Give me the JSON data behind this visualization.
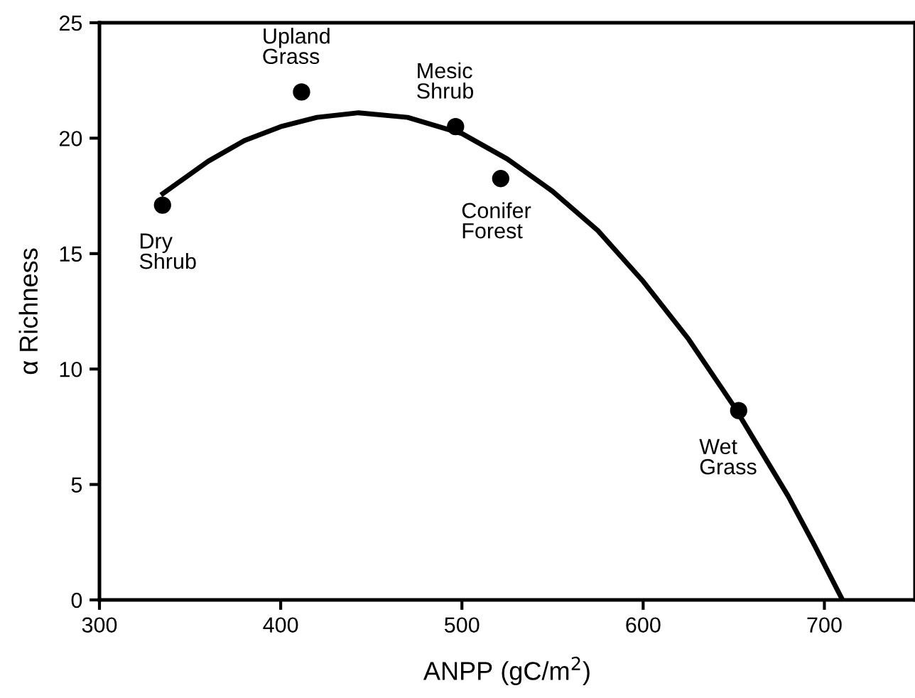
{
  "chart_data": {
    "type": "scatter",
    "xlabel": "ANPP (gC/m$^{2}$)",
    "ylabel": "α Richness",
    "xlim": [
      300,
      750
    ],
    "ylim": [
      0,
      25
    ],
    "xticks": [
      300,
      400,
      500,
      600,
      700
    ],
    "yticks": [
      0,
      5,
      10,
      15,
      20,
      25
    ],
    "grid": false,
    "series": [
      {
        "color": "#000000",
        "marker": "circle",
        "x": [
          334.8,
          411.5,
          496.5,
          521.4,
          652.7
        ],
        "values": [
          17.1,
          22.0,
          20.5,
          18.25,
          8.2
        ]
      },
      {
        "type": "line",
        "color": "#000000",
        "marker": "none",
        "line_style": "solid",
        "x": [
          335,
          360,
          380,
          400,
          420,
          443,
          470,
          500,
          525,
          550,
          575,
          600,
          625,
          650,
          680,
          695,
          710
        ],
        "values": [
          17.6,
          19.0,
          19.9,
          20.5,
          20.9,
          21.1,
          20.9,
          20.2,
          19.1,
          17.7,
          16.0,
          13.8,
          11.3,
          8.4,
          4.5,
          2.3,
          0
        ]
      }
    ],
    "annotations": [
      {
        "text": "Dry\nShrub",
        "x": 334.8,
        "y": 17.1
      },
      {
        "text": "Upland\nGrass",
        "x": 411.5,
        "y": 22.0
      },
      {
        "text": "Mesic\nShrub",
        "x": 496.5,
        "y": 20.5
      },
      {
        "text": "Conifer\nForest",
        "x": 521.4,
        "y": 18.25
      },
      {
        "text": "Wet\nGrass",
        "x": 652.7,
        "y": 8.2
      }
    ]
  }
}
